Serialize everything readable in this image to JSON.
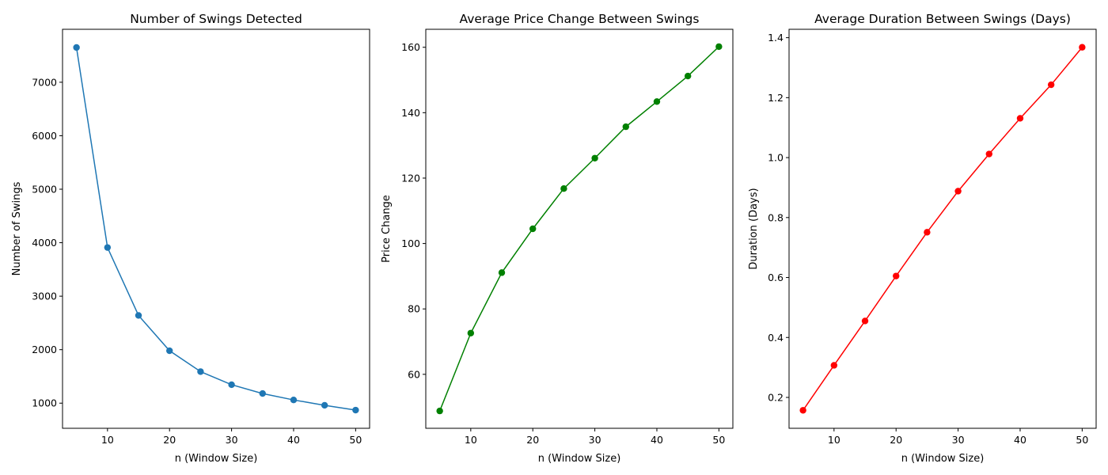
{
  "chart_data": [
    {
      "type": "line",
      "title": "Number of Swings Detected",
      "xlabel": "n (Window Size)",
      "ylabel": "Number of Swings",
      "color": "#1f77b4",
      "x": [
        5,
        10,
        15,
        20,
        25,
        30,
        35,
        40,
        45,
        50
      ],
      "y": [
        7650,
        3910,
        2640,
        1980,
        1590,
        1345,
        1180,
        1060,
        960,
        870
      ],
      "xlim": [
        2.75,
        52.25
      ],
      "ylim": [
        530,
        7990
      ],
      "xticks": [
        10,
        20,
        30,
        40,
        50
      ],
      "yticks": [
        1000,
        2000,
        3000,
        4000,
        5000,
        6000,
        7000
      ],
      "grid": false
    },
    {
      "type": "line",
      "title": "Average Price Change Between Swings",
      "xlabel": "n (Window Size)",
      "ylabel": "Price Change",
      "color": "#008000",
      "x": [
        5,
        10,
        15,
        20,
        25,
        30,
        35,
        40,
        45,
        50
      ],
      "y": [
        48.8,
        72.6,
        91.1,
        104.5,
        116.8,
        126.1,
        135.7,
        143.4,
        151.2,
        160.2
      ],
      "xlim": [
        2.75,
        52.25
      ],
      "ylim": [
        43.5,
        165.5
      ],
      "xticks": [
        10,
        20,
        30,
        40,
        50
      ],
      "yticks": [
        60,
        80,
        100,
        120,
        140,
        160
      ],
      "grid": false
    },
    {
      "type": "line",
      "title": "Average Duration Between Swings (Days)",
      "xlabel": "n (Window Size)",
      "ylabel": "Duration (Days)",
      "color": "#ff0000",
      "x": [
        5,
        10,
        15,
        20,
        25,
        30,
        35,
        40,
        45,
        50
      ],
      "y": [
        0.157,
        0.307,
        0.455,
        0.605,
        0.751,
        0.888,
        1.012,
        1.131,
        1.243,
        1.368
      ],
      "xlim": [
        2.75,
        52.25
      ],
      "ylim": [
        0.097,
        1.428
      ],
      "xticks": [
        10,
        20,
        30,
        40,
        50
      ],
      "yticks": [
        0.2,
        0.4,
        0.6,
        0.8,
        1.0,
        1.2,
        1.4
      ],
      "ytick_labels": [
        "0.2",
        "0.4",
        "0.6",
        "0.8",
        "1.0",
        "1.2",
        "1.4"
      ],
      "grid": false
    }
  ]
}
